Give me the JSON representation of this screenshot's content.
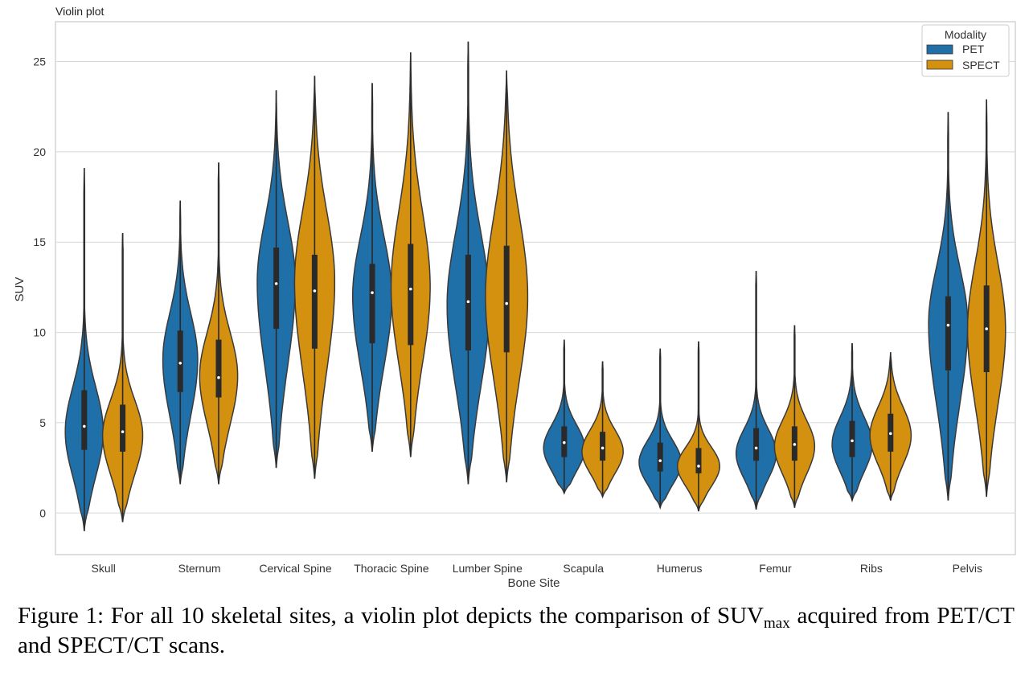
{
  "chart_data": {
    "type": "violin",
    "title": "Violin plot",
    "xlabel": "Bone Site",
    "ylabel": "SUV",
    "ylim": [
      -2.3,
      27.2
    ],
    "yticks": [
      0,
      5,
      10,
      15,
      20,
      25
    ],
    "grid": true,
    "legend": {
      "title": "Modality",
      "position": "top-right"
    },
    "categories": [
      "Skull",
      "Sternum",
      "Cervical Spine",
      "Thoracic Spine",
      "Lumber Spine",
      "Scapula",
      "Humerus",
      "Femur",
      "Ribs",
      "Pelvis"
    ],
    "series": [
      {
        "name": "PET",
        "color": "#1f6fa8",
        "stats": [
          {
            "min": -1.0,
            "q1": 3.5,
            "median": 4.8,
            "q3": 6.8,
            "max": 19.1,
            "max_width": 0.36,
            "mode": 4.5
          },
          {
            "min": 1.6,
            "q1": 6.7,
            "median": 8.3,
            "q3": 10.1,
            "max": 17.3,
            "max_width": 0.33,
            "mode": 8.5
          },
          {
            "min": 2.5,
            "q1": 10.2,
            "median": 12.7,
            "q3": 14.7,
            "max": 23.4,
            "max_width": 0.36,
            "mode": 12.8
          },
          {
            "min": 3.4,
            "q1": 9.4,
            "median": 12.2,
            "q3": 13.8,
            "max": 23.8,
            "max_width": 0.37,
            "mode": 12.0
          },
          {
            "min": 1.6,
            "q1": 9.0,
            "median": 11.7,
            "q3": 14.3,
            "max": 26.1,
            "max_width": 0.4,
            "mode": 11.5
          },
          {
            "min": 1.1,
            "q1": 3.1,
            "median": 3.9,
            "q3": 4.8,
            "max": 9.6,
            "max_width": 0.39,
            "mode": 3.6
          },
          {
            "min": 0.3,
            "q1": 2.3,
            "median": 2.9,
            "q3": 3.9,
            "max": 9.1,
            "max_width": 0.4,
            "mode": 2.8
          },
          {
            "min": 0.2,
            "q1": 2.9,
            "median": 3.6,
            "q3": 4.7,
            "max": 13.4,
            "max_width": 0.38,
            "mode": 3.3
          },
          {
            "min": 0.7,
            "q1": 3.1,
            "median": 4.0,
            "q3": 5.1,
            "max": 9.4,
            "max_width": 0.38,
            "mode": 3.8
          },
          {
            "min": 0.7,
            "q1": 7.9,
            "median": 10.4,
            "q3": 12.0,
            "max": 22.2,
            "max_width": 0.37,
            "mode": 10.5
          }
        ]
      },
      {
        "name": "SPECT",
        "color": "#d4900f",
        "stats": [
          {
            "min": -0.5,
            "q1": 3.4,
            "median": 4.5,
            "q3": 6.0,
            "max": 15.5,
            "max_width": 0.38,
            "mode": 4.3
          },
          {
            "min": 1.6,
            "q1": 6.4,
            "median": 7.5,
            "q3": 9.6,
            "max": 19.4,
            "max_width": 0.36,
            "mode": 7.6
          },
          {
            "min": 1.9,
            "q1": 9.1,
            "median": 12.3,
            "q3": 14.3,
            "max": 24.2,
            "max_width": 0.38,
            "mode": 12.8
          },
          {
            "min": 3.1,
            "q1": 9.3,
            "median": 12.4,
            "q3": 14.9,
            "max": 25.5,
            "max_width": 0.37,
            "mode": 12.5
          },
          {
            "min": 1.7,
            "q1": 8.9,
            "median": 11.6,
            "q3": 14.8,
            "max": 24.5,
            "max_width": 0.4,
            "mode": 12.0
          },
          {
            "min": 0.9,
            "q1": 2.9,
            "median": 3.6,
            "q3": 4.5,
            "max": 8.4,
            "max_width": 0.39,
            "mode": 3.4
          },
          {
            "min": 0.1,
            "q1": 2.2,
            "median": 2.6,
            "q3": 3.6,
            "max": 9.5,
            "max_width": 0.4,
            "mode": 2.6
          },
          {
            "min": 0.3,
            "q1": 2.9,
            "median": 3.8,
            "q3": 4.8,
            "max": 10.4,
            "max_width": 0.38,
            "mode": 3.7
          },
          {
            "min": 0.7,
            "q1": 3.4,
            "median": 4.4,
            "q3": 5.5,
            "max": 8.9,
            "max_width": 0.39,
            "mode": 4.3
          },
          {
            "min": 0.9,
            "q1": 7.8,
            "median": 10.2,
            "q3": 12.6,
            "max": 22.9,
            "max_width": 0.36,
            "mode": 10.2
          }
        ]
      }
    ]
  },
  "caption": {
    "prefix": "Figure 1: For all 10 skeletal sites, a violin plot depicts the comparison of SUV",
    "subscript": "max",
    "suffix": " acquired from PET/CT and SPECT/CT scans."
  }
}
